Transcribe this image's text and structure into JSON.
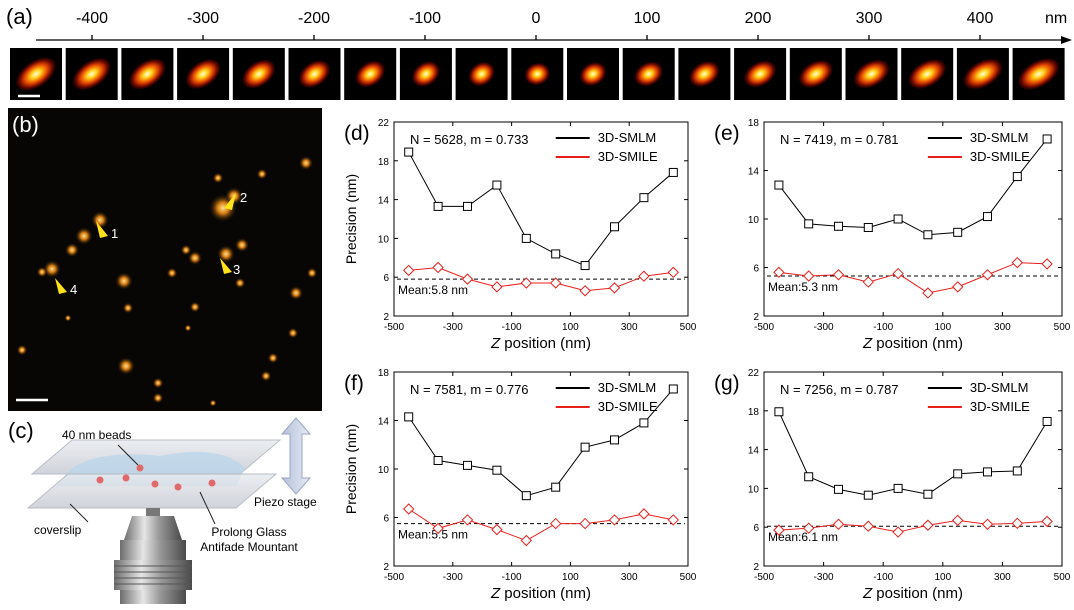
{
  "panel_a": {
    "label": "(a)",
    "unit": "nm",
    "axis_ticks": [
      "-400",
      "-300",
      "-200",
      "-100",
      "0",
      "100",
      "200",
      "300",
      "400"
    ],
    "frame_count": 19
  },
  "panel_b": {
    "label": "(b)",
    "markers": [
      "1",
      "2",
      "3",
      "4"
    ]
  },
  "panel_c": {
    "label": "(c)",
    "beads_label": "40 nm beads",
    "coverslip_label": "coverslip",
    "mountant_line1": "Prolong Glass",
    "mountant_line2": "Antifade Mountant",
    "stage_label": "Piezo stage"
  },
  "colors": {
    "smlm": "#000000",
    "smile": "#e8201c",
    "mean_line": "#000000"
  },
  "chart_data": [
    {
      "panel": "(d)",
      "type": "line",
      "annotation": "N = 5628, m = 0.733",
      "mean_label": "Mean:5.8 nm",
      "mean": 5.8,
      "xlabel_italic": "Z",
      "xlabel_rest": " position (nm)",
      "ylabel": "Precision (nm)",
      "xlim": [
        -500,
        500
      ],
      "ylim": [
        2,
        22
      ],
      "xticks": [
        -500,
        -300,
        -100,
        100,
        300,
        500
      ],
      "yticks": [
        2,
        6,
        10,
        14,
        18,
        22
      ],
      "x": [
        -450,
        -350,
        -250,
        -150,
        -50,
        50,
        150,
        250,
        350,
        450
      ],
      "series": [
        {
          "name": "3D-SMLM",
          "values": [
            18.9,
            13.3,
            13.3,
            15.5,
            10.0,
            8.4,
            7.2,
            11.2,
            14.2,
            16.8
          ]
        },
        {
          "name": "3D-SMILE",
          "values": [
            6.7,
            7.0,
            5.8,
            5.0,
            5.4,
            5.4,
            4.6,
            4.9,
            6.1,
            6.5
          ]
        }
      ]
    },
    {
      "panel": "(e)",
      "type": "line",
      "annotation": "N = 7419, m = 0.781",
      "mean_label": "Mean:5.3 nm",
      "mean": 5.3,
      "xlabel_italic": "Z",
      "xlabel_rest": " position (nm)",
      "ylabel": "",
      "xlim": [
        -500,
        500
      ],
      "ylim": [
        2,
        18
      ],
      "xticks": [
        -500,
        -300,
        -100,
        100,
        300,
        500
      ],
      "yticks": [
        2,
        6,
        10,
        14,
        18
      ],
      "x": [
        -450,
        -350,
        -250,
        -150,
        -50,
        50,
        150,
        250,
        350,
        450
      ],
      "series": [
        {
          "name": "3D-SMLM",
          "values": [
            12.8,
            9.6,
            9.4,
            9.3,
            10.0,
            8.7,
            8.9,
            10.2,
            13.5,
            16.6
          ]
        },
        {
          "name": "3D-SMILE",
          "values": [
            5.6,
            5.3,
            5.4,
            4.8,
            5.5,
            3.9,
            4.4,
            5.4,
            6.4,
            6.3
          ]
        }
      ]
    },
    {
      "panel": "(f)",
      "type": "line",
      "annotation": "N = 7581, m = 0.776",
      "mean_label": "Mean:5.5 nm",
      "mean": 5.5,
      "xlabel_italic": "Z",
      "xlabel_rest": " position (nm)",
      "ylabel": "Precision (nm)",
      "xlim": [
        -500,
        500
      ],
      "ylim": [
        2,
        18
      ],
      "xticks": [
        -500,
        -300,
        -100,
        100,
        300,
        500
      ],
      "yticks": [
        2,
        6,
        10,
        14,
        18
      ],
      "x": [
        -450,
        -350,
        -250,
        -150,
        -50,
        50,
        150,
        250,
        350,
        450
      ],
      "series": [
        {
          "name": "3D-SMLM",
          "values": [
            14.3,
            10.7,
            10.3,
            9.9,
            7.8,
            8.5,
            11.8,
            12.4,
            13.8,
            16.6
          ]
        },
        {
          "name": "3D-SMILE",
          "values": [
            6.7,
            5.1,
            5.8,
            5.0,
            4.1,
            5.5,
            5.5,
            5.8,
            6.3,
            5.8
          ]
        }
      ]
    },
    {
      "panel": "(g)",
      "type": "line",
      "annotation": "N = 7256, m = 0.787",
      "mean_label": "Mean:6.1 nm",
      "mean": 6.1,
      "xlabel_italic": "Z",
      "xlabel_rest": " position (nm)",
      "ylabel": "",
      "xlim": [
        -500,
        500
      ],
      "ylim": [
        2,
        22
      ],
      "xticks": [
        -500,
        -300,
        -100,
        100,
        300,
        500
      ],
      "yticks": [
        2,
        6,
        10,
        14,
        18,
        22
      ],
      "x": [
        -450,
        -350,
        -250,
        -150,
        -50,
        50,
        150,
        250,
        350,
        450
      ],
      "series": [
        {
          "name": "3D-SMLM",
          "values": [
            17.9,
            11.2,
            9.9,
            9.3,
            10.0,
            9.4,
            11.5,
            11.7,
            11.8,
            16.9
          ]
        },
        {
          "name": "3D-SMILE",
          "values": [
            5.7,
            5.9,
            6.3,
            6.1,
            5.5,
            6.2,
            6.7,
            6.3,
            6.4,
            6.6
          ]
        }
      ]
    }
  ]
}
